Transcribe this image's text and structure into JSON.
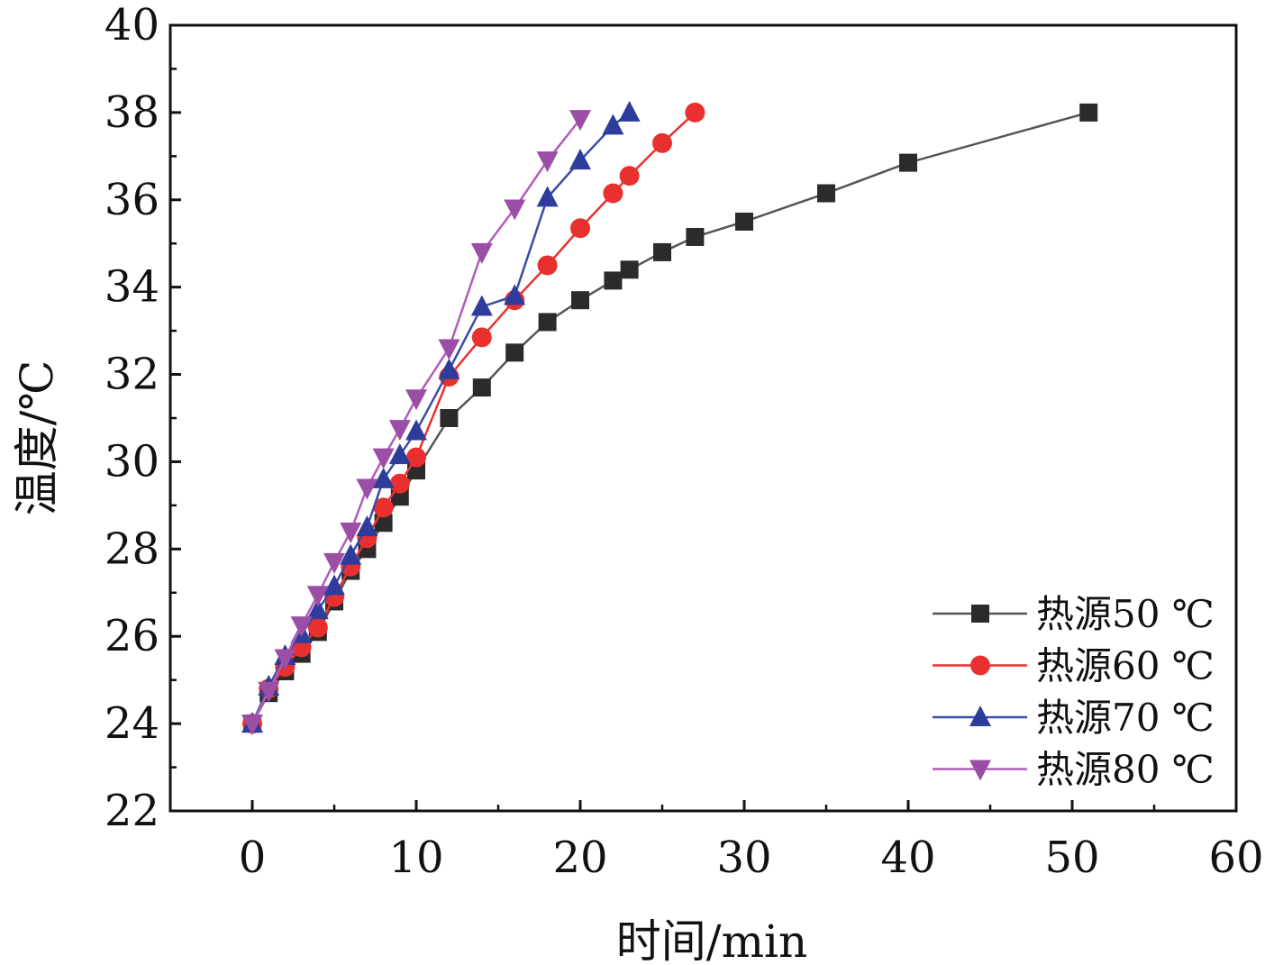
{
  "chart_data": {
    "type": "line",
    "title": "",
    "xlabel": "时间/min",
    "ylabel": "温度/℃",
    "xlim": [
      -5,
      60
    ],
    "ylim": [
      22,
      40
    ],
    "xticks": [
      0,
      10,
      20,
      30,
      40,
      50,
      60
    ],
    "yticks": [
      22,
      24,
      26,
      28,
      30,
      32,
      34,
      36,
      38,
      40
    ],
    "grid": false,
    "legend_position": "bottom-right",
    "series": [
      {
        "name": "热源50 ℃",
        "color": "#2b2b2b",
        "line_color": "#555555",
        "marker": "square",
        "x": [
          0,
          1,
          2,
          3,
          4,
          5,
          6,
          7,
          8,
          9,
          10,
          12,
          14,
          16,
          18,
          20,
          22,
          23,
          25,
          27,
          30,
          35,
          40,
          51
        ],
        "y": [
          24.0,
          24.7,
          25.2,
          25.6,
          26.1,
          26.8,
          27.5,
          28.0,
          28.6,
          29.2,
          29.8,
          31.0,
          31.7,
          32.5,
          33.2,
          33.7,
          34.15,
          34.4,
          34.8,
          35.15,
          35.5,
          36.15,
          36.85,
          38.0
        ]
      },
      {
        "name": "热源60 ℃",
        "color": "#e8312f",
        "line_color": "#e8312f",
        "marker": "circle",
        "x": [
          0,
          1,
          2,
          3,
          4,
          5,
          6,
          7,
          8,
          9,
          10,
          12,
          14,
          16,
          18,
          20,
          22,
          23,
          25,
          27
        ],
        "y": [
          24.0,
          24.8,
          25.3,
          25.75,
          26.2,
          26.9,
          27.6,
          28.25,
          28.95,
          29.5,
          30.1,
          31.95,
          32.85,
          33.7,
          34.5,
          35.35,
          36.15,
          36.55,
          37.3,
          38.0
        ]
      },
      {
        "name": "热源70 ℃",
        "color": "#2e3d9b",
        "line_color": "#3a4aa8",
        "marker": "triangle-up",
        "x": [
          0,
          1,
          2,
          3,
          4,
          5,
          6,
          7,
          8,
          9,
          10,
          12,
          14,
          16,
          18,
          20,
          22,
          23
        ],
        "y": [
          24.0,
          24.85,
          25.55,
          26.05,
          26.6,
          27.15,
          27.85,
          28.5,
          29.6,
          30.15,
          30.7,
          32.1,
          33.55,
          33.8,
          36.05,
          36.9,
          37.7,
          38.0
        ]
      },
      {
        "name": "热源80 ℃",
        "color": "#9b4ea5",
        "line_color": "#b35bbd",
        "marker": "triangle-down",
        "x": [
          0,
          1,
          2,
          3,
          4,
          5,
          6,
          7,
          8,
          9,
          10,
          12,
          14,
          16,
          18,
          20
        ],
        "y": [
          24.0,
          24.75,
          25.5,
          26.25,
          26.95,
          27.7,
          28.4,
          29.4,
          30.1,
          30.75,
          31.45,
          32.6,
          34.8,
          35.8,
          36.9,
          37.85
        ]
      }
    ]
  }
}
